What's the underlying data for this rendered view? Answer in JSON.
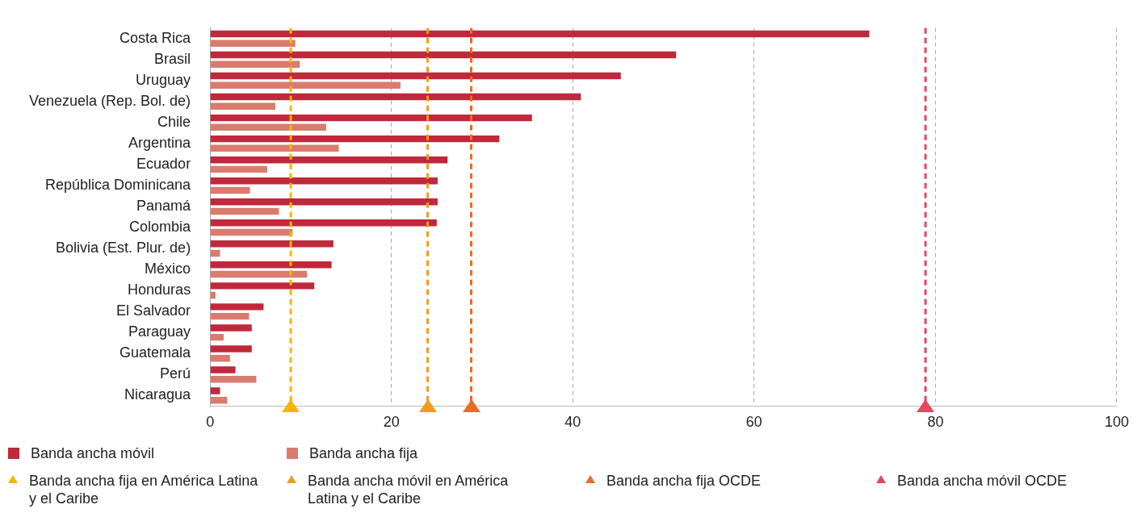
{
  "chart_data": {
    "type": "bar",
    "orientation": "horizontal",
    "categories": [
      "Costa Rica",
      "Brasil",
      "Uruguay",
      "Venezuela (Rep. Bol. de)",
      "Chile",
      "Argentina",
      "Ecuador",
      "República Dominicana",
      "Panamá",
      "Colombia",
      "Bolivia (Est. Plur. de)",
      "México",
      "Honduras",
      "El Salvador",
      "Paraguay",
      "Guatemala",
      "Perú",
      "Nicaragua"
    ],
    "series": [
      {
        "name": "Banda ancha móvil",
        "color": "#c0283c",
        "values": [
          72.7,
          51.4,
          45.3,
          40.9,
          35.5,
          31.9,
          26.2,
          25.1,
          25.1,
          25.0,
          13.6,
          13.4,
          11.5,
          5.9,
          4.6,
          4.6,
          2.8,
          1.1
        ]
      },
      {
        "name": "Banda ancha fija",
        "color": "#d97c6e",
        "values": [
          9.4,
          9.9,
          21.0,
          7.2,
          12.8,
          14.2,
          6.3,
          4.4,
          7.6,
          9.1,
          1.1,
          10.7,
          0.6,
          4.3,
          1.5,
          2.2,
          5.1,
          1.9
        ]
      }
    ],
    "xlim": [
      0,
      100
    ],
    "xticks": [
      0,
      20,
      40,
      60,
      80,
      100
    ],
    "grid": "x",
    "legend": "bottom",
    "ref_lines": [
      {
        "axis": "x",
        "value": 8.9,
        "label": "Banda ancha fija en América Latina y el Caribe",
        "color": "#f7b500",
        "line_style": "dashed"
      },
      {
        "axis": "x",
        "value": 24.0,
        "label": "Banda ancha móvil en América Latina y el Caribe",
        "color": "#f39a1e",
        "line_style": "dashed"
      },
      {
        "axis": "x",
        "value": 28.8,
        "label": "Banda ancha fija OCDE",
        "color": "#ec6b24",
        "line_style": "dashed"
      },
      {
        "axis": "x",
        "value": 78.9,
        "label": "Banda ancha móvil OCDE",
        "color": "#ea4460",
        "line_style": "dashed"
      }
    ]
  }
}
